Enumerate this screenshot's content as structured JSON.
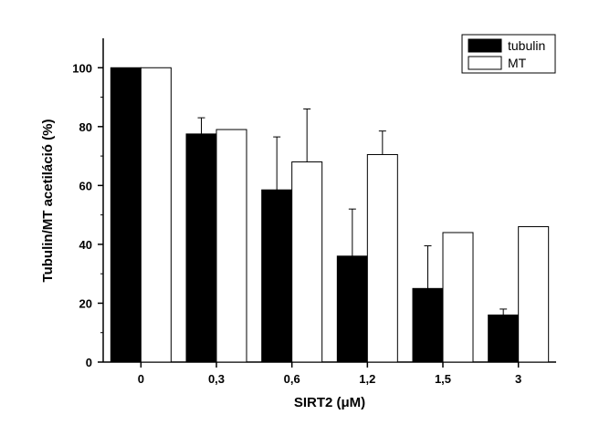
{
  "chart_data": {
    "type": "bar",
    "categories": [
      "0",
      "0,3",
      "0,6",
      "1,2",
      "1,5",
      "3"
    ],
    "series": [
      {
        "name": "tubulin",
        "values": [
          100,
          77.5,
          58.5,
          36,
          25,
          16
        ],
        "errors": [
          0,
          5.5,
          18,
          16,
          14.5,
          2
        ],
        "fill": "#000000"
      },
      {
        "name": "MT",
        "values": [
          100,
          79,
          68,
          70.5,
          44,
          46
        ],
        "errors": [
          0,
          0,
          18,
          8,
          0,
          0
        ],
        "fill": "#ffffff"
      }
    ],
    "xlabel": "SIRT2 (μM)",
    "ylabel": "Tubulin/MT acetiláció (%)",
    "ylim": [
      0,
      110
    ],
    "yticks": [
      "0",
      "20",
      "40",
      "60",
      "80",
      "100"
    ],
    "legend_position": "top-right",
    "grid": false
  }
}
